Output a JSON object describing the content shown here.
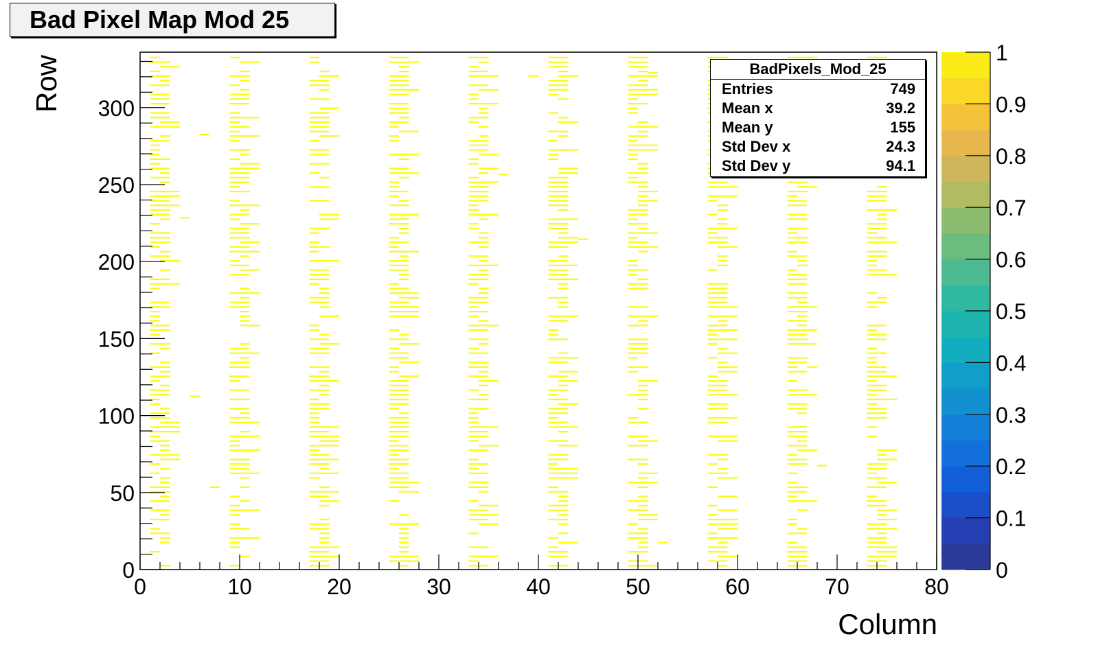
{
  "colors": {
    "palette": [
      "#2c3b99",
      "#263fb2",
      "#1a4fc9",
      "#1160d9",
      "#136fdc",
      "#147fd6",
      "#1290d0",
      "#109fca",
      "#13adc0",
      "#1eb4b0",
      "#2fb9a1",
      "#4cbb91",
      "#6cbc7f",
      "#8ebc6e",
      "#b0bb62",
      "#cfb65a",
      "#e5b74c",
      "#f4c33a",
      "#fbd727",
      "#fbec18",
      "#f9fb0f"
    ],
    "data": "#f9fb0f"
  },
  "title_box": {
    "text": "Bad Pixel Map Mod 25"
  },
  "stats_box": {
    "title": "BadPixels_Mod_25",
    "rows": [
      {
        "label": "Entries",
        "value": "749"
      },
      {
        "label": "Mean x",
        "value": "39.2"
      },
      {
        "label": "Mean y",
        "value": "155"
      },
      {
        "label": "Std Dev x",
        "value": "24.3"
      },
      {
        "label": "Std Dev y",
        "value": "94.1"
      }
    ]
  },
  "chart_data": {
    "type": "heatmap",
    "title": "Bad Pixel Map Mod 25",
    "xlabel": "Column",
    "ylabel": "Row",
    "xlim": [
      0,
      80
    ],
    "ylim": [
      0,
      336
    ],
    "xticks": [
      0,
      10,
      20,
      30,
      40,
      50,
      60,
      70,
      80
    ],
    "yticks": [
      0,
      50,
      100,
      150,
      200,
      250,
      300
    ],
    "zlim": [
      0,
      1
    ],
    "zticks": [
      0,
      0.1,
      0.2,
      0.3,
      0.4,
      0.5,
      0.6,
      0.7,
      0.8,
      0.9,
      1
    ],
    "zticklabels": [
      "0",
      "0.1",
      "0.2",
      "0.3",
      "0.4",
      "0.5",
      "0.6",
      "0.7",
      "0.8",
      "0.9",
      "1"
    ],
    "grid": false,
    "bad_pixel_bands": [
      {
        "columns": [
          1,
          2
        ],
        "rows": [
          0,
          336
        ]
      },
      {
        "columns": [
          9,
          10
        ],
        "rows": [
          0,
          336
        ]
      },
      {
        "columns": [
          17,
          18
        ],
        "rows": [
          0,
          336
        ]
      },
      {
        "columns": [
          25,
          26
        ],
        "rows": [
          0,
          336
        ]
      },
      {
        "columns": [
          33,
          34
        ],
        "rows": [
          0,
          336
        ]
      },
      {
        "columns": [
          41,
          42
        ],
        "rows": [
          0,
          336
        ]
      },
      {
        "columns": [
          49,
          50
        ],
        "rows": [
          0,
          336
        ]
      },
      {
        "columns": [
          57,
          58
        ],
        "rows": [
          0,
          336
        ]
      },
      {
        "columns": [
          65,
          66
        ],
        "rows": [
          0,
          336
        ]
      },
      {
        "columns": [
          73,
          74
        ],
        "rows": [
          0,
          336
        ]
      }
    ],
    "isolated_pixels": [
      [
        6,
        282
      ],
      [
        4,
        228
      ],
      [
        5,
        112
      ],
      [
        7,
        53
      ],
      [
        39,
        320
      ],
      [
        36,
        256
      ],
      [
        44,
        214
      ],
      [
        51,
        322
      ],
      [
        68,
        67
      ],
      [
        52,
        17
      ],
      [
        67,
        131
      ]
    ],
    "z_value": 1
  }
}
